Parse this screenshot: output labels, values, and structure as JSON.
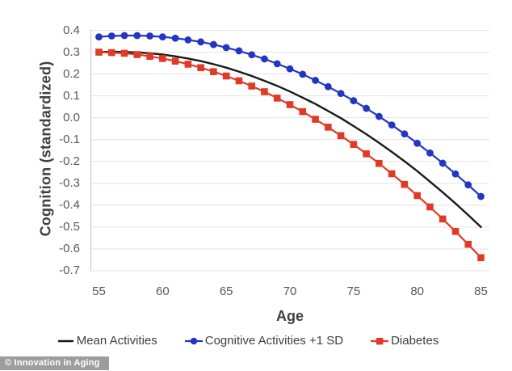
{
  "chart_data": {
    "type": "line",
    "title": "",
    "xlabel": "Age",
    "ylabel": "Cognition (standardized)",
    "xlim": [
      55,
      85
    ],
    "ylim": [
      -0.7,
      0.4
    ],
    "x_ticks": [
      55,
      60,
      65,
      70,
      75,
      80,
      85
    ],
    "y_ticks": [
      0.4,
      0.3,
      0.2,
      0.1,
      0.0,
      -0.1,
      -0.2,
      -0.3,
      -0.4,
      -0.5,
      -0.6,
      -0.7
    ],
    "grid": "horizontal",
    "legend_position": "bottom",
    "x": [
      55,
      56,
      57,
      58,
      59,
      60,
      61,
      62,
      63,
      64,
      65,
      66,
      67,
      68,
      69,
      70,
      71,
      72,
      73,
      74,
      75,
      76,
      77,
      78,
      79,
      80,
      81,
      82,
      83,
      84,
      85
    ],
    "series": [
      {
        "name": "Mean Activities",
        "color": "#1a1a1a",
        "marker": "none",
        "values": [
          0.3,
          0.302,
          0.301,
          0.299,
          0.295,
          0.289,
          0.281,
          0.271,
          0.259,
          0.245,
          0.229,
          0.211,
          0.191,
          0.169,
          0.146,
          0.12,
          0.092,
          0.063,
          0.031,
          -0.002,
          -0.038,
          -0.075,
          -0.115,
          -0.156,
          -0.199,
          -0.244,
          -0.292,
          -0.341,
          -0.392,
          -0.445,
          -0.5
        ]
      },
      {
        "name": "Cognitive Activities +1 SD",
        "color": "#2236c1",
        "marker": "circle",
        "values": [
          0.37,
          0.374,
          0.376,
          0.376,
          0.374,
          0.37,
          0.364,
          0.356,
          0.347,
          0.335,
          0.321,
          0.306,
          0.288,
          0.269,
          0.247,
          0.224,
          0.199,
          0.171,
          0.142,
          0.111,
          0.078,
          0.043,
          0.006,
          -0.033,
          -0.074,
          -0.117,
          -0.161,
          -0.208,
          -0.257,
          -0.307,
          -0.36
        ]
      },
      {
        "name": "Diabetes",
        "color": "#e03a26",
        "marker": "square",
        "values": [
          0.3,
          0.298,
          0.295,
          0.289,
          0.281,
          0.271,
          0.259,
          0.245,
          0.229,
          0.211,
          0.191,
          0.169,
          0.145,
          0.119,
          0.09,
          0.06,
          0.028,
          -0.007,
          -0.043,
          -0.082,
          -0.122,
          -0.165,
          -0.209,
          -0.256,
          -0.305,
          -0.356,
          -0.408,
          -0.463,
          -0.52,
          -0.579,
          -0.64
        ]
      }
    ]
  },
  "colors": {
    "gridline": "#e2e2e2",
    "axis_line": "#c9c9c9",
    "tick_label": "#595959",
    "axis_title": "#3f3f3f",
    "legend_text": "#404040",
    "watermark_bg": "#9d9d9d",
    "watermark_text": "#ffffff"
  },
  "watermark": {
    "text": "© Innovation in Aging"
  }
}
